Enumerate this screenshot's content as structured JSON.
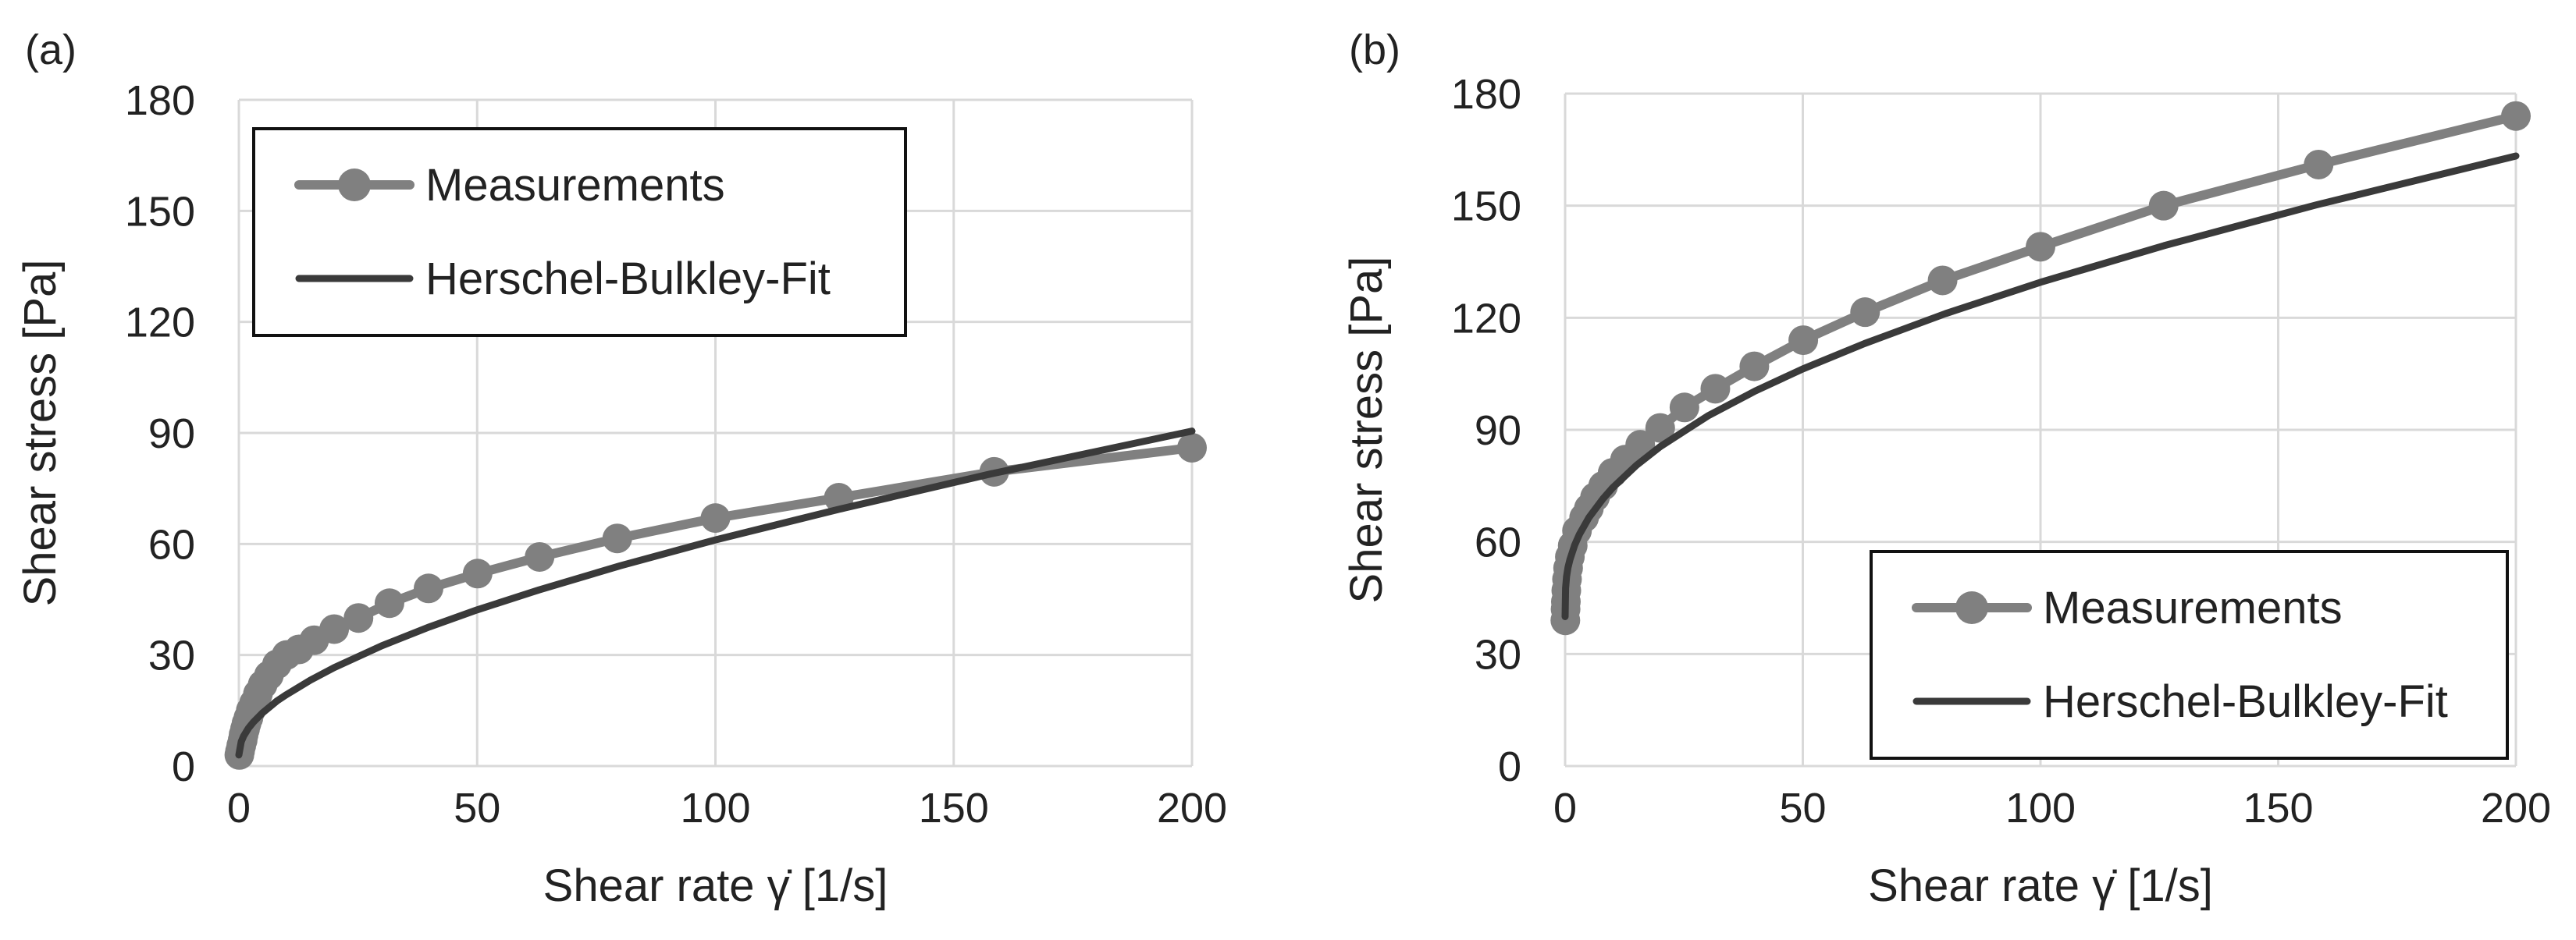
{
  "colors": {
    "measurements": "#808080",
    "fit": "#3a3a3a",
    "grid": "#d9d9d9",
    "text": "#222222"
  },
  "chart_data": [
    {
      "panel_label": "(a)",
      "type": "line",
      "xlabel": "Shear rate γ̇ [1/s]",
      "ylabel": "Shear stress [Pa]",
      "xlim": [
        0,
        200
      ],
      "ylim": [
        0,
        180
      ],
      "xticks": [
        0,
        50,
        100,
        150,
        200
      ],
      "yticks": [
        0,
        30,
        60,
        90,
        120,
        150,
        180
      ],
      "grid": true,
      "legend_position": "top-left",
      "series": [
        {
          "name": "Measurements",
          "style": "line-with-markers",
          "x": [
            0.1,
            0.25,
            0.5,
            0.8,
            1.0,
            1.3,
            1.6,
            2.0,
            2.5,
            3.2,
            4.0,
            5.0,
            6.3,
            8.0,
            10.0,
            12.6,
            15.8,
            20.0,
            25.1,
            31.6,
            39.8,
            50.1,
            63.1,
            79.4,
            100.0,
            125.9,
            158.5,
            200.0
          ],
          "y": [
            3,
            4,
            5.5,
            7,
            8.5,
            10,
            11.5,
            13,
            15,
            17,
            19.5,
            22,
            24.5,
            27.5,
            30,
            31.5,
            34,
            37,
            40,
            44,
            48,
            52,
            56.5,
            61.5,
            67,
            72.5,
            79.5,
            86
          ]
        },
        {
          "name": "Herschel-Bulkley-Fit",
          "style": "line",
          "x": [
            0,
            0.5,
            1,
            2,
            3,
            5,
            8,
            10,
            15,
            20,
            30,
            40,
            50,
            63,
            80,
            100,
            126,
            158,
            200
          ],
          "y": [
            3,
            6.6,
            8.1,
            10.2,
            11.8,
            14.4,
            17.6,
            19.3,
            23.2,
            26.6,
            32.5,
            37.6,
            42.2,
            47.6,
            54.1,
            61.1,
            69.4,
            79.0,
            90.5
          ]
        }
      ]
    },
    {
      "panel_label": "(b)",
      "type": "line",
      "xlabel": "Shear rate γ̇ [1/s]",
      "ylabel": "Shear stress [Pa]",
      "xlim": [
        0,
        200
      ],
      "ylim": [
        0,
        180
      ],
      "xticks": [
        0,
        50,
        100,
        150,
        200
      ],
      "yticks": [
        0,
        30,
        60,
        90,
        120,
        150,
        180
      ],
      "grid": true,
      "legend_position": "bottom-right",
      "series": [
        {
          "name": "Measurements",
          "style": "line-with-markers",
          "x": [
            0.05,
            0.1,
            0.16,
            0.25,
            0.4,
            0.63,
            1.0,
            1.6,
            2.5,
            4.0,
            5.0,
            6.3,
            8.0,
            10.0,
            12.6,
            15.8,
            20.0,
            25.1,
            31.6,
            39.8,
            50.1,
            63.1,
            79.4,
            100.0,
            125.9,
            158.5,
            200.0
          ],
          "y": [
            39,
            42,
            44,
            47,
            50,
            53,
            56,
            59,
            63,
            66.5,
            69,
            72,
            75,
            78.5,
            82,
            86,
            90.5,
            96,
            101,
            107,
            114,
            121.5,
            130,
            139,
            150,
            161,
            174
          ]
        },
        {
          "name": "Herschel-Bulkley-Fit",
          "style": "line",
          "x": [
            0,
            0.1,
            0.3,
            0.6,
            1,
            2,
            3,
            5,
            8,
            10,
            15,
            20,
            30,
            40,
            50,
            63,
            80,
            100,
            126,
            158,
            200
          ],
          "y": [
            40,
            47.6,
            50.7,
            53.1,
            55.2,
            59.1,
            62.0,
            66.5,
            71.6,
            74.5,
            80.5,
            85.5,
            93.7,
            100.4,
            106.3,
            113.1,
            121.1,
            129.5,
            139.3,
            150.2,
            163.3
          ]
        }
      ]
    }
  ]
}
